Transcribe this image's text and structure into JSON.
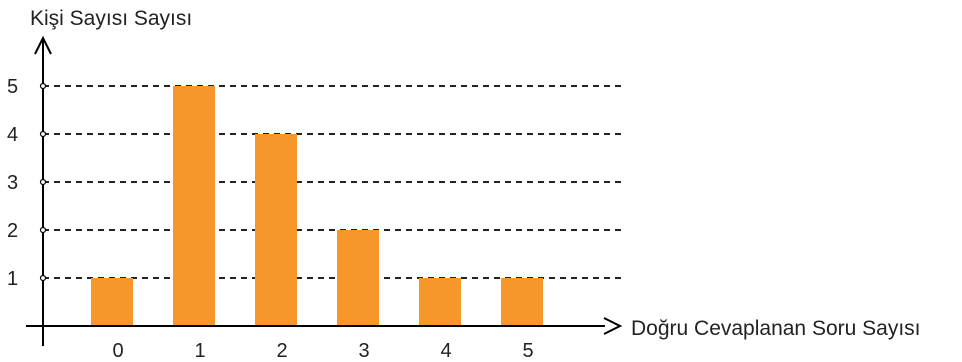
{
  "chart_data": {
    "type": "bar",
    "categories": [
      "0",
      "1",
      "2",
      "3",
      "4",
      "5"
    ],
    "values": [
      1,
      5,
      4,
      2,
      1,
      1
    ],
    "ylabel": "Kişi Sayısı Sayısı",
    "xlabel": "Doğru Cevaplanan Soru Sayısı",
    "yticks": [
      "1",
      "2",
      "3",
      "4",
      "5"
    ],
    "ylim": [
      0,
      5
    ],
    "grid": "horizontal dashed",
    "bar_color": "#f7962a",
    "axis_color": "#000000"
  }
}
